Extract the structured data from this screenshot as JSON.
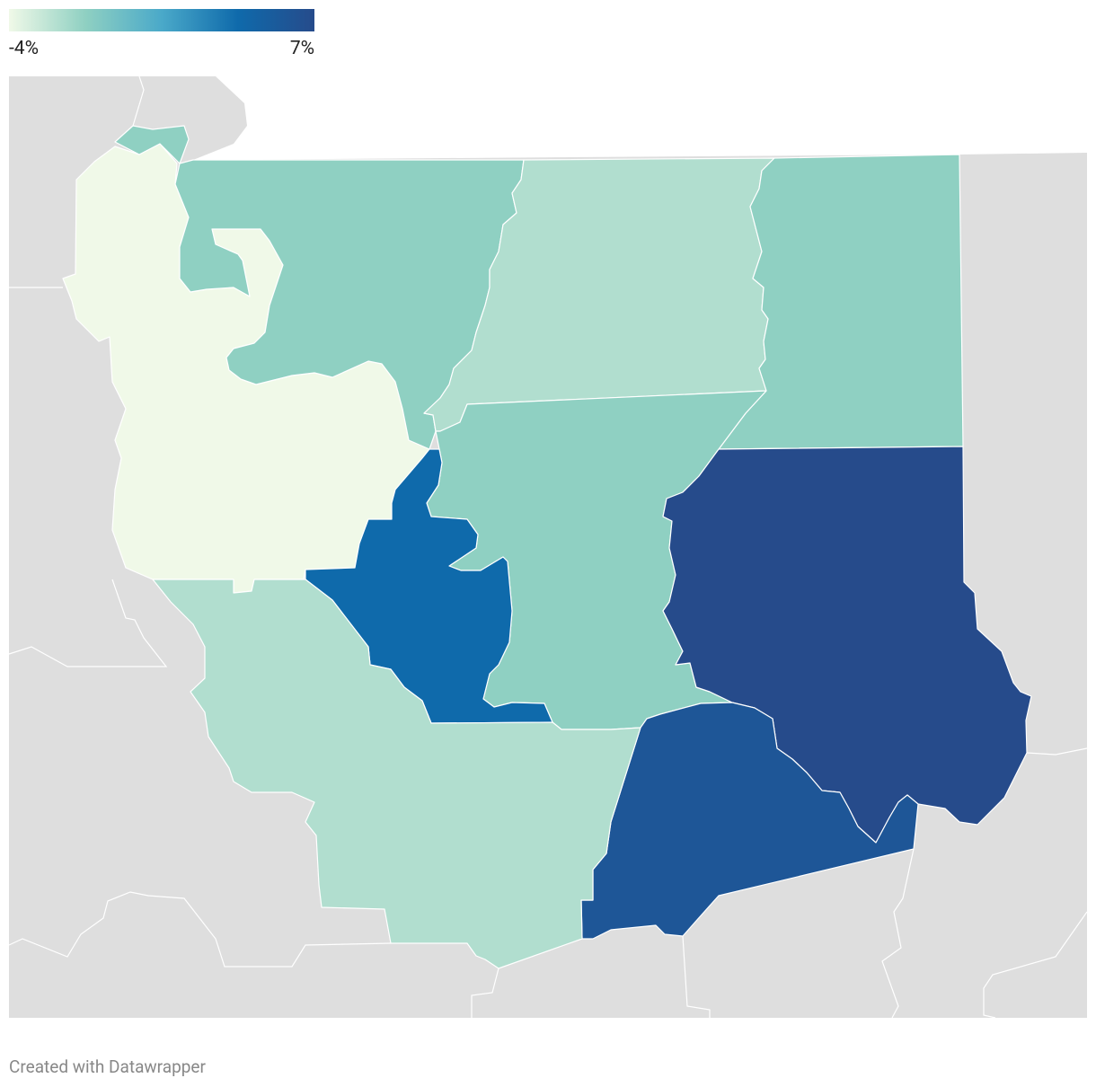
{
  "legend": {
    "min": {
      "value": -4,
      "label": "-4%"
    },
    "max": {
      "value": 7,
      "label": "7%"
    },
    "colors": [
      "#f0f9e8",
      "#8fd0c2",
      "#4aa9c9",
      "#0f6aab",
      "#264b8b"
    ]
  },
  "regions": {
    "values": [
      -4,
      -1.25,
      -1.25,
      -2.2,
      -1.25,
      -1.25,
      4.25,
      7,
      6,
      -2.2
    ]
  },
  "footer": "Created with Datawrapper"
}
